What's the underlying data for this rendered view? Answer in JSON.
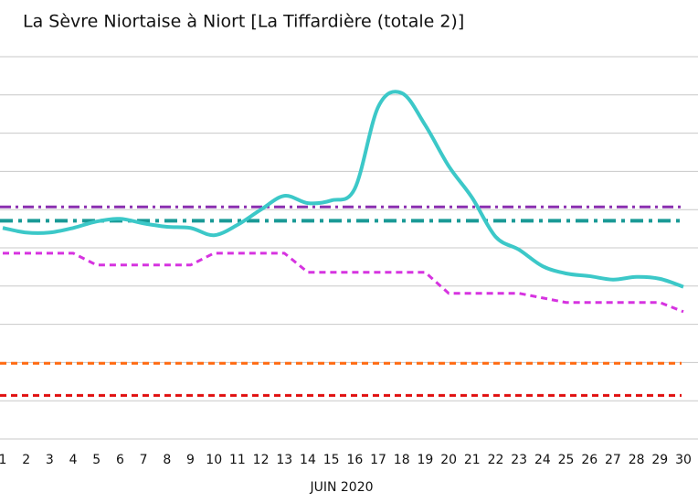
{
  "chart_data": {
    "type": "line",
    "title": "La Sèvre Niortaise à Niort [La Tiffardière (totale 2)]",
    "x_label": "JUIN 2020",
    "categories": [
      "1",
      "2",
      "3",
      "4",
      "5",
      "6",
      "7",
      "8",
      "9",
      "10",
      "11",
      "12",
      "13",
      "14",
      "15",
      "16",
      "17",
      "18",
      "19",
      "20",
      "21",
      "22",
      "23",
      "24",
      "25",
      "26",
      "27",
      "28",
      "29",
      "30"
    ],
    "series": [
      {
        "color": "#3cc8c8",
        "style": "solid",
        "smooth": true,
        "values": [
          5.52,
          5.4,
          5.4,
          5.52,
          5.69,
          5.76,
          5.64,
          5.55,
          5.52,
          5.33,
          5.6,
          6.0,
          6.36,
          6.17,
          6.24,
          6.55,
          8.69,
          9.05,
          8.21,
          7.14,
          6.31,
          5.29,
          4.95,
          4.52,
          4.33,
          4.26,
          4.17,
          4.24,
          4.19,
          3.98
        ]
      },
      {
        "color": "#d633e0",
        "style": "dashed",
        "smooth": false,
        "values": [
          4.86,
          4.86,
          4.86,
          4.86,
          4.55,
          4.55,
          4.55,
          4.55,
          4.55,
          4.86,
          4.86,
          4.86,
          4.86,
          4.36,
          4.36,
          4.36,
          4.36,
          4.36,
          4.36,
          3.81,
          3.81,
          3.81,
          3.81,
          3.69,
          3.57,
          3.57,
          3.57,
          3.57,
          3.57,
          3.33
        ]
      }
    ],
    "thresholds": [
      {
        "value": 6.07,
        "color": "#8a2fb0",
        "style": "dashdot"
      },
      {
        "value": 5.71,
        "color": "#1a9a96",
        "style": "dashdot-thick"
      },
      {
        "value": 1.98,
        "color": "#ff6a10",
        "style": "dashed"
      },
      {
        "value": 1.14,
        "color": "#e01010",
        "style": "dashed"
      }
    ],
    "ylim": [
      0,
      10
    ],
    "yticks": [
      0,
      1,
      2,
      3,
      4,
      5,
      6,
      7,
      8,
      9,
      10
    ],
    "grid": true
  }
}
